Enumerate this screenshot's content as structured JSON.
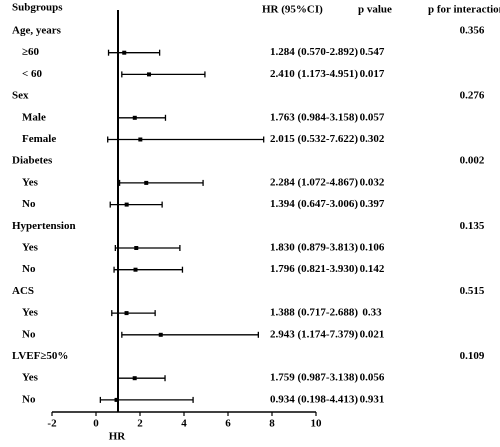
{
  "chart_data": {
    "type": "forest",
    "header": {
      "subgroups": "Subgroups",
      "hr": "HR (95%CI)",
      "p": "p value",
      "p_interaction": "p for interaction"
    },
    "xlabel": "HR",
    "xlim": [
      -2,
      10
    ],
    "xticks": [
      -2,
      0,
      2,
      4,
      6,
      8,
      10
    ],
    "reference_line": 1,
    "groups": [
      {
        "name": "Age, years",
        "p_interaction": 0.356,
        "rows": [
          {
            "label": "≥60",
            "hr": 1.284,
            "lo": 0.57,
            "hi": 2.892,
            "hr_label": "1.284 (0.570-2.892)",
            "p": 0.547
          },
          {
            "label": "< 60",
            "hr": 2.41,
            "lo": 1.173,
            "hi": 4.951,
            "hr_label": "2.410 (1.173-4.951)",
            "p": 0.017
          }
        ]
      },
      {
        "name": "Sex",
        "p_interaction": 0.276,
        "rows": [
          {
            "label": "Male",
            "hr": 1.763,
            "lo": 0.984,
            "hi": 3.158,
            "hr_label": "1.763 (0.984-3.158)",
            "p": 0.057
          },
          {
            "label": "Female",
            "hr": 2.015,
            "lo": 0.532,
            "hi": 7.622,
            "hr_label": "2.015 (0.532-7.622)",
            "p": 0.302
          }
        ]
      },
      {
        "name": "Diabetes",
        "p_interaction": 0.002,
        "rows": [
          {
            "label": "Yes",
            "hr": 2.284,
            "lo": 1.072,
            "hi": 4.867,
            "hr_label": "2.284 (1.072-4.867)",
            "p": 0.032
          },
          {
            "label": "No",
            "hr": 1.394,
            "lo": 0.647,
            "hi": 3.006,
            "hr_label": "1.394 (0.647-3.006)",
            "p": 0.397
          }
        ]
      },
      {
        "name": "Hypertension",
        "p_interaction": 0.135,
        "rows": [
          {
            "label": "Yes",
            "hr": 1.83,
            "lo": 0.879,
            "hi": 3.813,
            "hr_label": "1.830 (0.879-3.813)",
            "p": 0.106
          },
          {
            "label": "No",
            "hr": 1.796,
            "lo": 0.821,
            "hi": 3.93,
            "hr_label": "1.796 (0.821-3.930)",
            "p": 0.142
          }
        ]
      },
      {
        "name": "ACS",
        "p_interaction": 0.515,
        "rows": [
          {
            "label": "Yes",
            "hr": 1.388,
            "lo": 0.717,
            "hi": 2.688,
            "hr_label": "1.388 (0.717-2.688)",
            "p": 0.33
          },
          {
            "label": "No",
            "hr": 2.943,
            "lo": 1.174,
            "hi": 7.379,
            "hr_label": "2.943 (1.174-7.379)",
            "p": 0.021
          }
        ]
      },
      {
        "name": "LVEF≥50%",
        "p_interaction": 0.109,
        "rows": [
          {
            "label": "Yes",
            "hr": 1.759,
            "lo": 0.987,
            "hi": 3.138,
            "hr_label": "1.759 (0.987-3.138)",
            "p": 0.056
          },
          {
            "label": "No",
            "hr": 0.934,
            "lo": 0.198,
            "hi": 4.413,
            "hr_label": "0.934 (0.198-4.413)",
            "p": 0.931
          }
        ]
      }
    ]
  }
}
